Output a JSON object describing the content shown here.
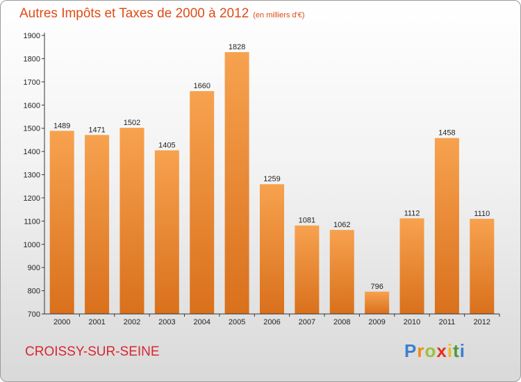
{
  "header": {
    "title": "Autres Impôts et Taxes de 2000 à 2012",
    "subtitle": "(en milliers d'€)"
  },
  "footer": {
    "town": "CROISSY-SUR-SEINE",
    "logo_letters": [
      "P",
      "r",
      "o",
      "x",
      "i",
      "t",
      "i"
    ]
  },
  "colors": {
    "title": "#e04a14",
    "town": "#d8262f",
    "bar_top": "#f7a24f",
    "bar_bottom": "#d9701c",
    "logo": [
      "#3b7fd1",
      "#f08a16",
      "#9bc23a",
      "#e0321f",
      "#f0b81a",
      "#4a9a3a",
      "#3b7fd1"
    ]
  },
  "chart_data": {
    "type": "bar",
    "title": "Autres Impôts et Taxes de 2000 à 2012",
    "categories": [
      "2000",
      "2001",
      "2002",
      "2003",
      "2004",
      "2005",
      "2006",
      "2007",
      "2008",
      "2009",
      "2010",
      "2011",
      "2012"
    ],
    "values": [
      1489,
      1471,
      1502,
      1405,
      1660,
      1828,
      1259,
      1081,
      1062,
      796,
      1112,
      1458,
      1110
    ],
    "ylim": [
      700,
      1900
    ],
    "yticks": [
      700,
      800,
      900,
      1000,
      1100,
      1200,
      1300,
      1400,
      1500,
      1600,
      1700,
      1800,
      1900
    ],
    "grid": false,
    "legend": "none"
  }
}
